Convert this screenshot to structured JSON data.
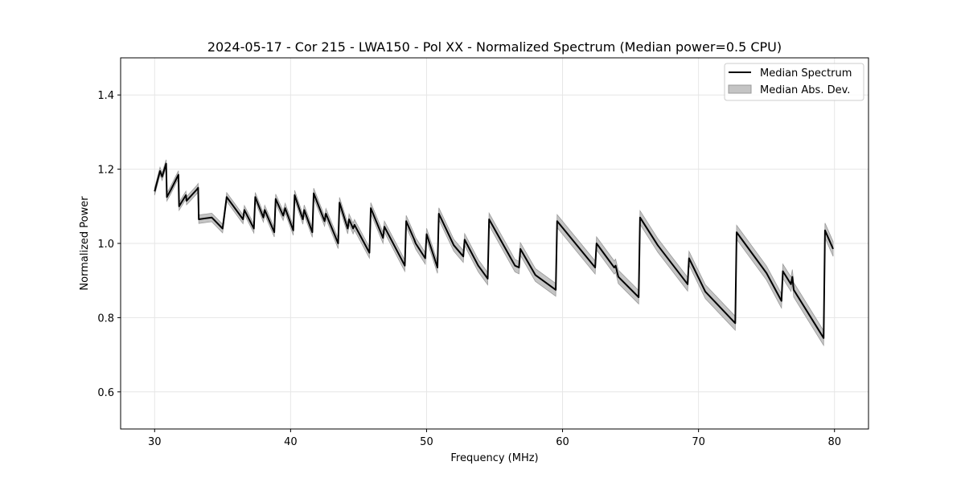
{
  "chart_data": {
    "type": "line",
    "title": "2024-05-17 - Cor 215 - LWA150 - Pol XX - Normalized Spectrum (Median power=0.5 CPU)",
    "xlabel": "Frequency (MHz)",
    "ylabel": "Normalized Power",
    "xlim": [
      27.5,
      82.5
    ],
    "ylim": [
      0.5,
      1.5
    ],
    "xticks": [
      30,
      40,
      50,
      60,
      70,
      80
    ],
    "yticks": [
      0.6,
      0.8,
      1.0,
      1.2,
      1.4
    ],
    "xtick_labels": [
      "30",
      "40",
      "50",
      "60",
      "70",
      "80"
    ],
    "ytick_labels": [
      "0.6",
      "0.8",
      "1.0",
      "1.2",
      "1.4"
    ],
    "grid": true,
    "legend_position": "top-right",
    "legend": [
      "Median Spectrum",
      "Median Abs. Dev."
    ],
    "colors": {
      "line": "#000000",
      "band_fill": "#c4c4c4",
      "band_edge": "#9a9a9a",
      "grid": "#e6e6e6"
    },
    "series": [
      {
        "name": "Median Spectrum",
        "x": [
          30.0,
          30.4,
          30.55,
          30.85,
          30.9,
          31.2,
          31.75,
          31.8,
          32.3,
          32.35,
          33.1,
          33.2,
          33.25,
          34.2,
          35.0,
          35.3,
          35.4,
          36.5,
          36.6,
          37.3,
          37.4,
          38.0,
          38.1,
          38.8,
          38.9,
          39.45,
          39.6,
          40.2,
          40.3,
          40.9,
          41.0,
          41.6,
          41.7,
          42.5,
          42.6,
          43.5,
          43.6,
          44.2,
          44.3,
          44.6,
          44.7,
          45.8,
          45.9,
          46.8,
          46.9,
          48.4,
          48.5,
          49.1,
          49.2,
          49.9,
          50.0,
          50.8,
          50.9,
          52.0,
          52.7,
          52.8,
          53.8,
          54.0,
          54.5,
          54.6,
          56.5,
          56.8,
          56.9,
          58.0,
          59.5,
          59.6,
          62.4,
          62.5,
          63.8,
          63.9,
          64.1,
          65.6,
          65.7,
          67.0,
          69.2,
          69.3,
          70.5,
          72.7,
          72.8,
          75.0,
          76.1,
          76.2,
          76.8,
          76.9,
          77.0,
          79.2,
          79.3,
          79.9
        ],
        "y": [
          1.14,
          1.195,
          1.18,
          1.215,
          1.125,
          1.145,
          1.185,
          1.1,
          1.13,
          1.115,
          1.145,
          1.15,
          1.065,
          1.07,
          1.04,
          1.125,
          1.12,
          1.065,
          1.09,
          1.04,
          1.125,
          1.07,
          1.09,
          1.03,
          1.12,
          1.075,
          1.095,
          1.035,
          1.13,
          1.065,
          1.09,
          1.03,
          1.135,
          1.06,
          1.08,
          1.0,
          1.11,
          1.04,
          1.065,
          1.04,
          1.05,
          0.975,
          1.095,
          1.015,
          1.045,
          0.94,
          1.06,
          1.01,
          1.0,
          0.96,
          1.025,
          0.935,
          1.08,
          0.995,
          0.965,
          1.01,
          0.94,
          0.93,
          0.905,
          1.065,
          0.94,
          0.935,
          0.985,
          0.915,
          0.875,
          1.06,
          0.935,
          1.0,
          0.935,
          0.94,
          0.91,
          0.855,
          1.07,
          0.995,
          0.89,
          0.96,
          0.87,
          0.785,
          1.03,
          0.92,
          0.845,
          0.925,
          0.89,
          0.91,
          0.875,
          0.745,
          1.035,
          0.985
        ]
      }
    ],
    "band": {
      "name": "Median Abs. Dev.",
      "half_width": 0.01
    }
  }
}
